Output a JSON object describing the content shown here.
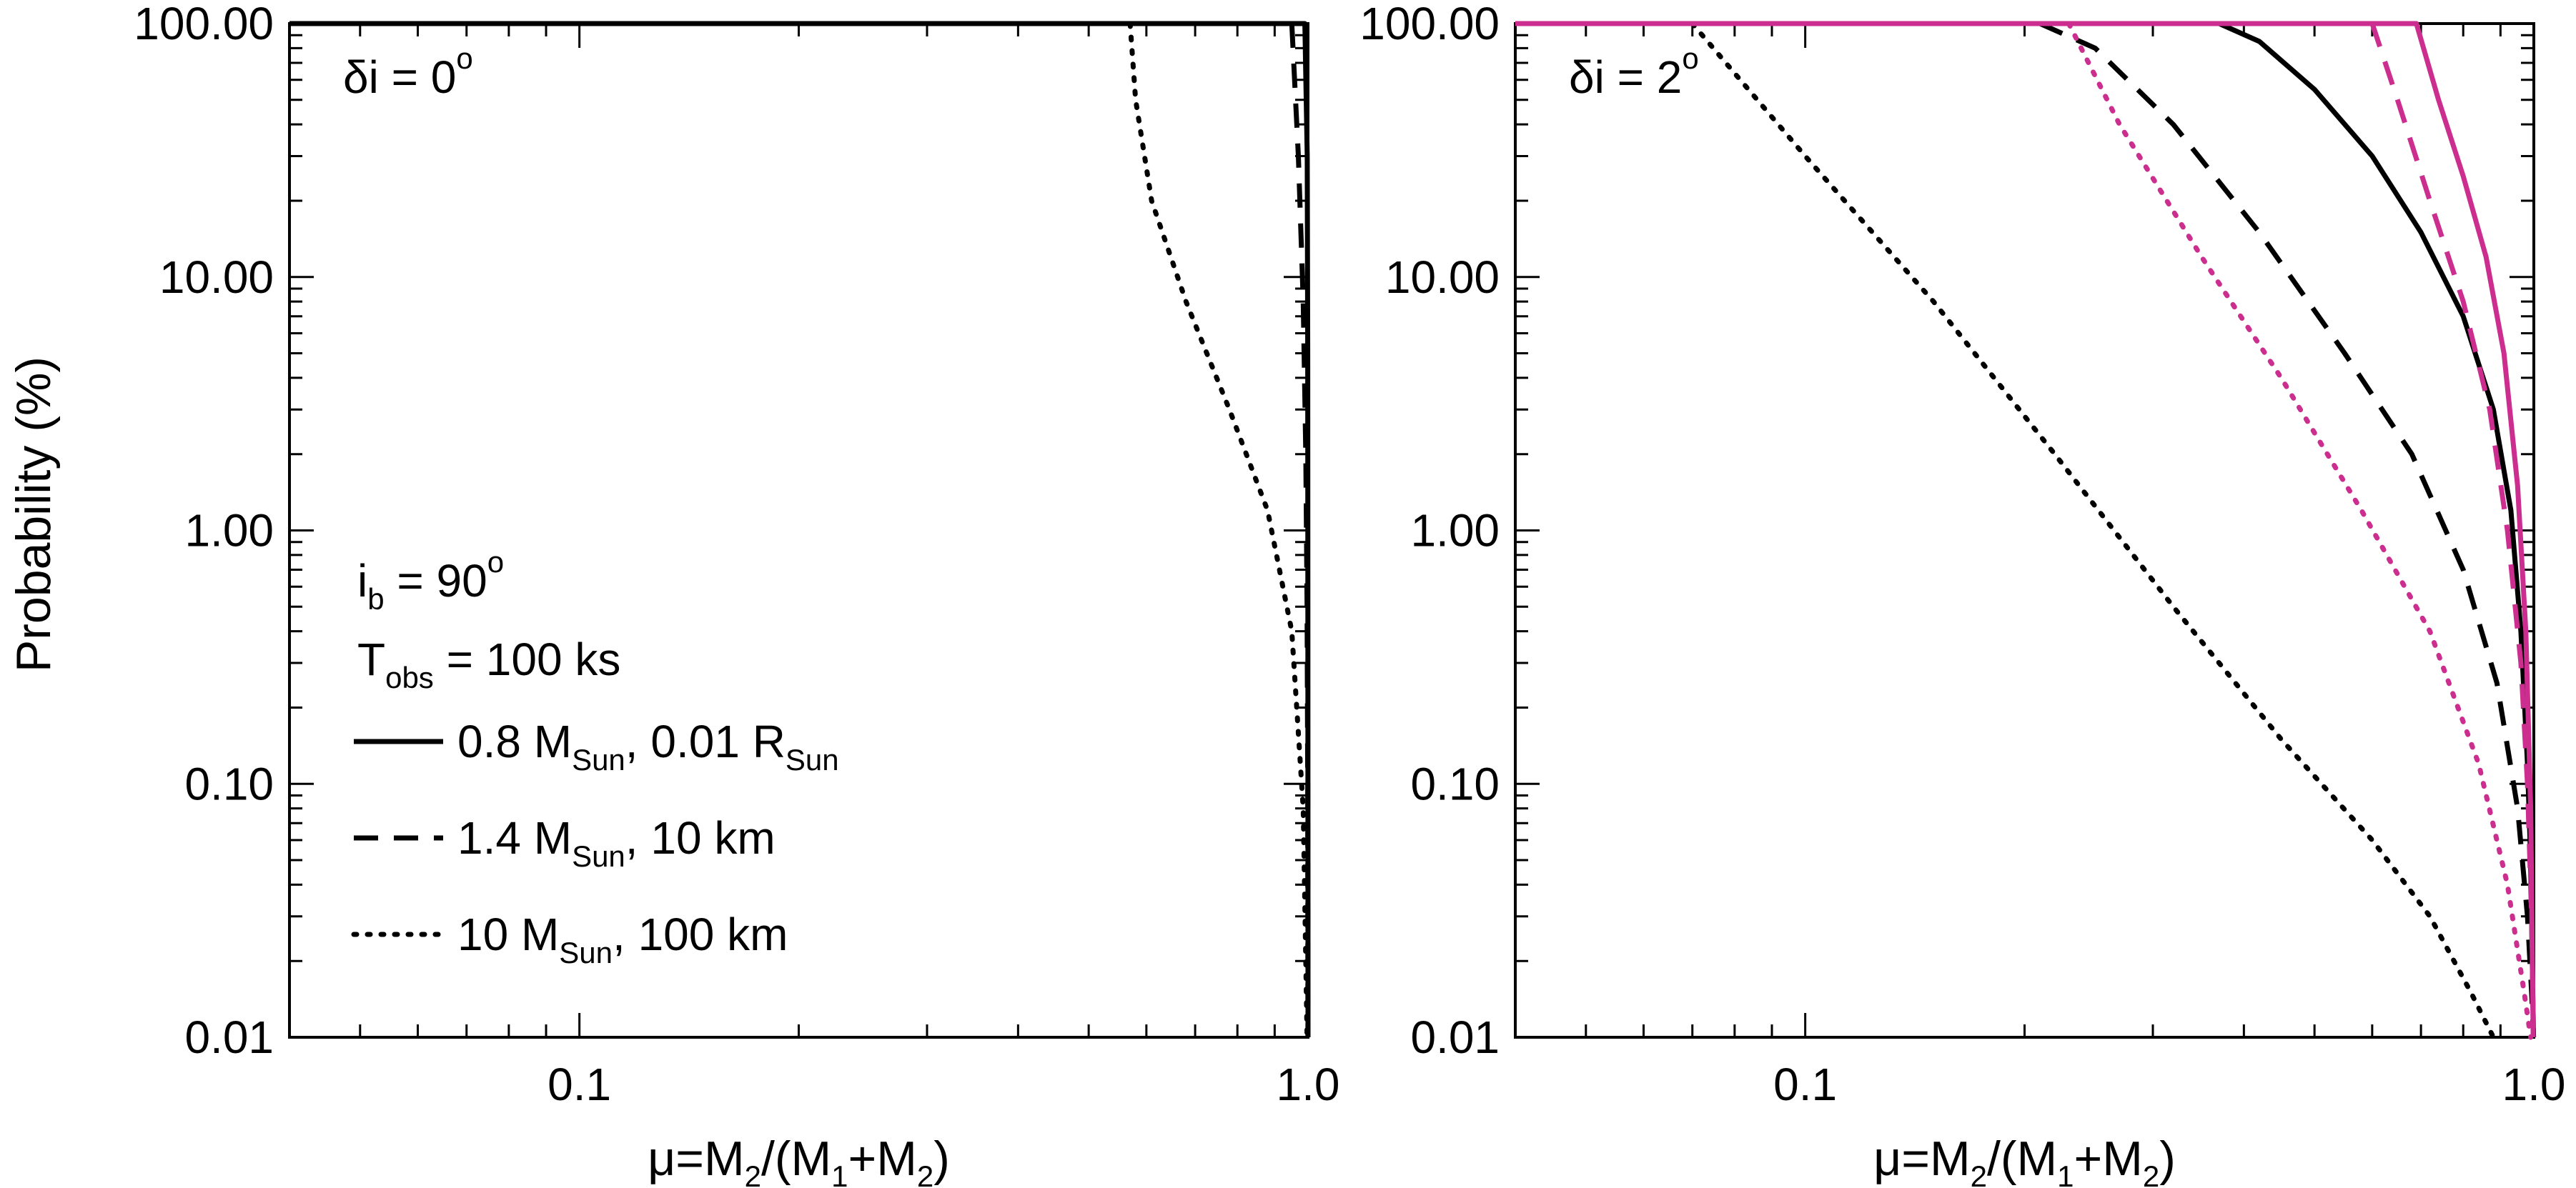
{
  "chart_data": [
    {
      "type": "line",
      "xscale": "log",
      "yscale": "log",
      "xlim": [
        0.04,
        1.0
      ],
      "ylim": [
        0.01,
        100.0
      ],
      "xticks": [
        0.1,
        1.0
      ],
      "xtick_labels": [
        "0.1",
        "1.0"
      ],
      "yticks": [
        0.01,
        0.1,
        1.0,
        10.0,
        100.0
      ],
      "ytick_labels": [
        "0.01",
        "0.10",
        "1.00",
        "10.00",
        "100.00"
      ],
      "xlabel": {
        "pre": "μ=M",
        "s1": "2",
        "mid": "/(M",
        "s2": "1",
        "mid2": "+M",
        "s3": "2",
        "post": ")"
      },
      "ylabel": "Probability (%)",
      "panel_label": {
        "text": "δi = 0",
        "sup": "o"
      },
      "legend": {
        "placement": "lower-left",
        "params": [
          {
            "text": "i",
            "sub": "b",
            "rest": " = 90",
            "sup": "o"
          },
          {
            "text": "T",
            "sub": "obs",
            "rest": " = 100 ks"
          }
        ],
        "entries": [
          {
            "style": "solid",
            "text": "0.8 M",
            "sub1": "Sun",
            "mid": ", 0.01 R",
            "sub2": "Sun"
          },
          {
            "style": "dashed",
            "text": "1.4 M",
            "sub1": "Sun",
            "mid": ", 10 km"
          },
          {
            "style": "dotted",
            "text": "10 M",
            "sub1": "Sun",
            "mid": ", 100 km"
          }
        ]
      },
      "series": [
        {
          "style": "solid",
          "color": "#000000",
          "x": [
            0.04,
            0.99,
            0.9975,
            0.999,
            0.9995,
            0.9999
          ],
          "y": [
            100,
            100,
            30,
            5,
            0.5,
            0.01
          ]
        },
        {
          "style": "dashed",
          "color": "#000000",
          "x": [
            0.95,
            0.97,
            0.985,
            0.993,
            0.997,
            0.999,
            0.9998
          ],
          "y": [
            100,
            30,
            8,
            2,
            0.5,
            0.1,
            0.01
          ]
        },
        {
          "style": "dotted",
          "color": "#000000",
          "x": [
            0.57,
            0.58,
            0.61,
            0.68,
            0.78,
            0.88,
            0.95,
            0.985,
            0.997
          ],
          "y": [
            100,
            50,
            20,
            8,
            3,
            1.2,
            0.4,
            0.08,
            0.01
          ]
        }
      ]
    },
    {
      "type": "line",
      "xscale": "log",
      "yscale": "log",
      "xlim": [
        0.04,
        1.0
      ],
      "ylim": [
        0.01,
        100.0
      ],
      "xticks": [
        0.1,
        1.0
      ],
      "xtick_labels": [
        "0.1",
        "1.0"
      ],
      "yticks": [
        0.01,
        0.1,
        1.0,
        10.0,
        100.0
      ],
      "ytick_labels": [
        "0.01",
        "0.10",
        "1.00",
        "10.00",
        "100.00"
      ],
      "xlabel": {
        "pre": "μ=M",
        "s1": "2",
        "mid": "/(M",
        "s2": "1",
        "mid2": "+M",
        "s3": "2",
        "post": ")"
      },
      "panel_label": {
        "text": "δi = 2",
        "sup": "o"
      },
      "series": [
        {
          "style": "solid",
          "color": "#000000",
          "x": [
            0.04,
            0.37,
            0.42,
            0.5,
            0.6,
            0.7,
            0.8,
            0.88,
            0.93,
            0.96,
            0.98,
            0.99,
            0.995,
            0.999
          ],
          "y": [
            100,
            100,
            85,
            55,
            30,
            15,
            7,
            3,
            1.2,
            0.4,
            0.12,
            0.05,
            0.02,
            0.01
          ]
        },
        {
          "style": "dashed",
          "color": "#000000",
          "x": [
            0.21,
            0.25,
            0.32,
            0.42,
            0.55,
            0.68,
            0.8,
            0.89,
            0.95,
            0.98,
            0.993,
            0.999
          ],
          "y": [
            100,
            80,
            40,
            15,
            5,
            2,
            0.7,
            0.25,
            0.08,
            0.03,
            0.015,
            0.01
          ]
        },
        {
          "style": "dotted",
          "color": "#000000",
          "x": [
            0.07,
            0.1,
            0.15,
            0.22,
            0.32,
            0.45,
            0.6,
            0.72,
            0.82,
            0.88
          ],
          "y": [
            100,
            30,
            8,
            2,
            0.5,
            0.15,
            0.06,
            0.03,
            0.015,
            0.01
          ]
        },
        {
          "style": "solid",
          "color": "#cc2e8f",
          "x": [
            0.04,
            0.69,
            0.74,
            0.8,
            0.86,
            0.91,
            0.95,
            0.975,
            0.99,
            0.998
          ],
          "y": [
            100,
            100,
            50,
            25,
            12,
            5,
            1.5,
            0.4,
            0.08,
            0.01
          ]
        },
        {
          "style": "dashed",
          "color": "#cc2e8f",
          "x": [
            0.6,
            0.65,
            0.72,
            0.8,
            0.87,
            0.92,
            0.96,
            0.98,
            0.993,
            0.999
          ],
          "y": [
            100,
            50,
            20,
            8,
            3,
            1,
            0.3,
            0.1,
            0.03,
            0.01
          ]
        },
        {
          "style": "dotted",
          "color": "#cc2e8f",
          "x": [
            0.23,
            0.27,
            0.35,
            0.45,
            0.58,
            0.72,
            0.84,
            0.92,
            0.97,
            0.99
          ],
          "y": [
            100,
            40,
            12,
            4,
            1.2,
            0.4,
            0.12,
            0.04,
            0.015,
            0.01
          ]
        }
      ]
    }
  ]
}
